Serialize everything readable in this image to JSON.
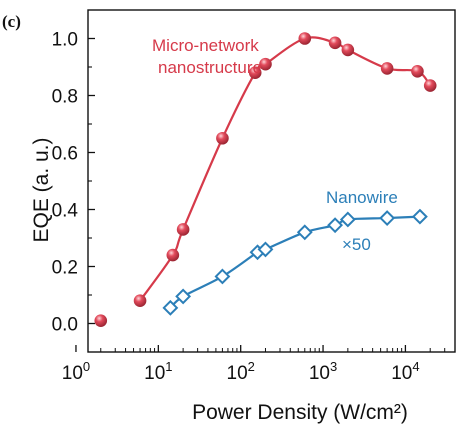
{
  "panel_label": "(c)",
  "chart_data": {
    "type": "scatter",
    "xscale": "log",
    "xlim": [
      1.4,
      40000
    ],
    "ylim": [
      -0.1,
      1.1
    ],
    "xlabel": "Power Density (W/cm²)",
    "ylabel": "EQE (a. u.)",
    "x_ticks": [
      {
        "base": "10",
        "exp": "0",
        "value": 1
      },
      {
        "base": "10",
        "exp": "1",
        "value": 10
      },
      {
        "base": "10",
        "exp": "2",
        "value": 100
      },
      {
        "base": "10",
        "exp": "3",
        "value": 1000
      },
      {
        "base": "10",
        "exp": "4",
        "value": 10000
      }
    ],
    "y_ticks": [
      "0.0",
      "0.2",
      "0.4",
      "0.6",
      "0.8",
      "1.0"
    ],
    "series": [
      {
        "name": "Micro-network nanostructure",
        "label_lines": [
          "Micro-network",
          "nanostructure"
        ],
        "color": "#d63a4a",
        "marker": "sphere",
        "fit_line": true,
        "x": [
          2,
          6,
          15,
          20,
          60,
          150,
          200,
          600,
          1400,
          2000,
          6000,
          14000,
          20000
        ],
        "y": [
          0.01,
          0.08,
          0.24,
          0.33,
          0.65,
          0.88,
          0.91,
          1.0,
          0.985,
          0.96,
          0.895,
          0.885,
          0.835
        ]
      },
      {
        "name": "Nanowire",
        "note": "×50",
        "color": "#2c7fb8",
        "marker": "diamond",
        "fit_line": true,
        "x": [
          14,
          20,
          60,
          160,
          200,
          600,
          1400,
          2000,
          6000,
          15000
        ],
        "y": [
          0.055,
          0.095,
          0.165,
          0.25,
          0.26,
          0.32,
          0.345,
          0.365,
          0.37,
          0.375
        ]
      }
    ]
  }
}
